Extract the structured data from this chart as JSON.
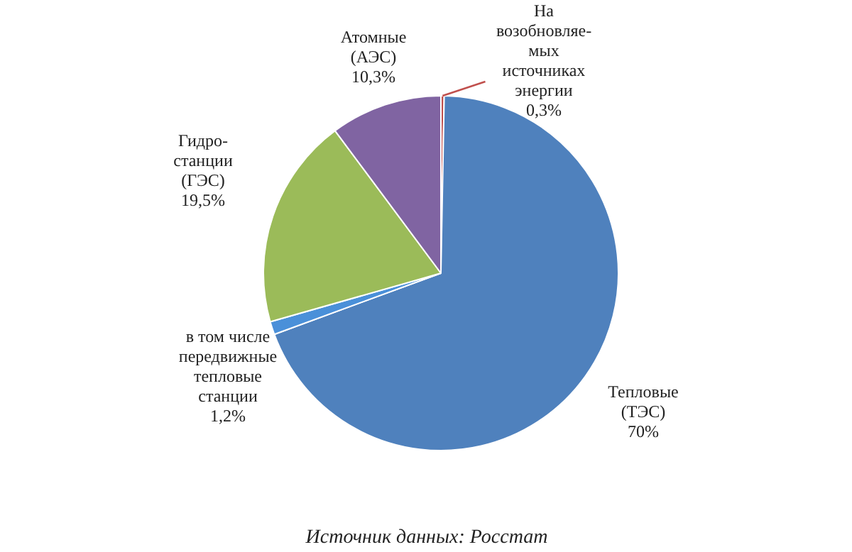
{
  "chart_data": {
    "type": "pie",
    "categories": [
      "На\nвозобновляе-\nмых\nисточниках\nэнергии",
      "Тепловые\n(ТЭС)",
      "в том числе\nпередвижные\nтепловые\nстанции",
      "Гидро-\nстанции\n(ГЭС)",
      "Атомные\n(АЭС)"
    ],
    "values": [
      0.3,
      70,
      1.2,
      19.5,
      10.3
    ],
    "value_labels": [
      "0,3%",
      "70%",
      "1,2%",
      "19,5%",
      "10,3%"
    ],
    "colors": [
      "#c0504d",
      "#4f81bd",
      "#4a90d9",
      "#9bbb59",
      "#8064a2"
    ],
    "annotations": [
      "Источник данных: Росстат"
    ]
  }
}
